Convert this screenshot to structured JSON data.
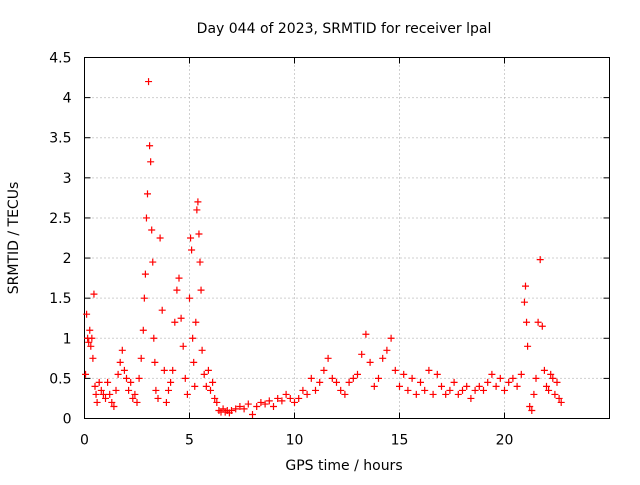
{
  "chart_data": {
    "type": "scatter",
    "title": "Day 044 of 2023, SRMTID for receiver lpal",
    "xlabel": "GPS time / hours",
    "ylabel": "SRMTID / TECUs",
    "xlim": [
      0,
      25
    ],
    "ylim": [
      0,
      4.5
    ],
    "grid": true,
    "marker": "+",
    "marker_color": "#ff0000",
    "x_ticks": [
      0,
      5,
      10,
      15,
      20
    ],
    "x_tick_labels": [
      "0",
      "5",
      "10",
      "15",
      "20"
    ],
    "y_ticks": [
      0,
      0.5,
      1,
      1.5,
      2,
      2.5,
      3,
      3.5,
      4,
      4.5
    ],
    "y_tick_labels": [
      "0",
      "0.5",
      "1",
      "1.5",
      "2",
      "2.5",
      "3",
      "3.5",
      "4",
      "4.5"
    ],
    "series": [
      {
        "name": "SRMTID",
        "points": [
          [
            0.05,
            0.55
          ],
          [
            0.1,
            1.3
          ],
          [
            0.15,
            1.0
          ],
          [
            0.2,
            0.95
          ],
          [
            0.25,
            1.1
          ],
          [
            0.3,
            0.9
          ],
          [
            0.35,
            1.0
          ],
          [
            0.4,
            0.75
          ],
          [
            0.45,
            1.55
          ],
          [
            0.5,
            0.4
          ],
          [
            0.55,
            0.3
          ],
          [
            0.6,
            0.2
          ],
          [
            0.7,
            0.45
          ],
          [
            0.8,
            0.35
          ],
          [
            0.9,
            0.3
          ],
          [
            1.0,
            0.25
          ],
          [
            1.1,
            0.45
          ],
          [
            1.2,
            0.3
          ],
          [
            1.3,
            0.2
          ],
          [
            1.4,
            0.15
          ],
          [
            1.5,
            0.35
          ],
          [
            1.6,
            0.55
          ],
          [
            1.7,
            0.7
          ],
          [
            1.8,
            0.85
          ],
          [
            1.9,
            0.6
          ],
          [
            2.0,
            0.5
          ],
          [
            2.1,
            0.35
          ],
          [
            2.2,
            0.45
          ],
          [
            2.3,
            0.25
          ],
          [
            2.4,
            0.3
          ],
          [
            2.5,
            0.2
          ],
          [
            2.6,
            0.5
          ],
          [
            2.7,
            0.75
          ],
          [
            2.8,
            1.1
          ],
          [
            2.85,
            1.5
          ],
          [
            2.9,
            1.8
          ],
          [
            2.95,
            2.5
          ],
          [
            3.0,
            2.8
          ],
          [
            3.05,
            4.2
          ],
          [
            3.1,
            3.4
          ],
          [
            3.15,
            3.2
          ],
          [
            3.2,
            2.35
          ],
          [
            3.25,
            1.95
          ],
          [
            3.3,
            1.0
          ],
          [
            3.35,
            0.7
          ],
          [
            3.4,
            0.35
          ],
          [
            3.5,
            0.25
          ],
          [
            3.6,
            2.25
          ],
          [
            3.7,
            1.35
          ],
          [
            3.8,
            0.6
          ],
          [
            3.9,
            0.2
          ],
          [
            4.0,
            0.35
          ],
          [
            4.1,
            0.45
          ],
          [
            4.2,
            0.6
          ],
          [
            4.3,
            1.2
          ],
          [
            4.4,
            1.6
          ],
          [
            4.5,
            1.75
          ],
          [
            4.6,
            1.25
          ],
          [
            4.7,
            0.9
          ],
          [
            4.8,
            0.5
          ],
          [
            4.9,
            0.3
          ],
          [
            5.0,
            1.5
          ],
          [
            5.05,
            2.25
          ],
          [
            5.1,
            2.1
          ],
          [
            5.15,
            1.0
          ],
          [
            5.2,
            0.7
          ],
          [
            5.25,
            0.4
          ],
          [
            5.3,
            1.2
          ],
          [
            5.35,
            2.6
          ],
          [
            5.4,
            2.7
          ],
          [
            5.45,
            2.3
          ],
          [
            5.5,
            1.95
          ],
          [
            5.55,
            1.6
          ],
          [
            5.6,
            0.85
          ],
          [
            5.7,
            0.55
          ],
          [
            5.8,
            0.4
          ],
          [
            5.9,
            0.6
          ],
          [
            6.0,
            0.35
          ],
          [
            6.1,
            0.45
          ],
          [
            6.2,
            0.25
          ],
          [
            6.3,
            0.2
          ],
          [
            6.4,
            0.1
          ],
          [
            6.5,
            0.08
          ],
          [
            6.6,
            0.12
          ],
          [
            6.7,
            0.08
          ],
          [
            6.8,
            0.1
          ],
          [
            6.9,
            0.07
          ],
          [
            7.0,
            0.1
          ],
          [
            7.2,
            0.12
          ],
          [
            7.4,
            0.15
          ],
          [
            7.6,
            0.12
          ],
          [
            7.8,
            0.18
          ],
          [
            8.0,
            0.05
          ],
          [
            8.2,
            0.15
          ],
          [
            8.4,
            0.2
          ],
          [
            8.6,
            0.18
          ],
          [
            8.8,
            0.22
          ],
          [
            9.0,
            0.15
          ],
          [
            9.2,
            0.25
          ],
          [
            9.4,
            0.22
          ],
          [
            9.6,
            0.3
          ],
          [
            9.8,
            0.25
          ],
          [
            10.0,
            0.2
          ],
          [
            10.2,
            0.25
          ],
          [
            10.4,
            0.35
          ],
          [
            10.6,
            0.3
          ],
          [
            10.8,
            0.5
          ],
          [
            11.0,
            0.35
          ],
          [
            11.2,
            0.45
          ],
          [
            11.4,
            0.6
          ],
          [
            11.6,
            0.75
          ],
          [
            11.8,
            0.5
          ],
          [
            12.0,
            0.45
          ],
          [
            12.2,
            0.35
          ],
          [
            12.4,
            0.3
          ],
          [
            12.6,
            0.45
          ],
          [
            12.8,
            0.5
          ],
          [
            13.0,
            0.55
          ],
          [
            13.2,
            0.8
          ],
          [
            13.4,
            1.05
          ],
          [
            13.6,
            0.7
          ],
          [
            13.8,
            0.4
          ],
          [
            14.0,
            0.5
          ],
          [
            14.2,
            0.75
          ],
          [
            14.4,
            0.85
          ],
          [
            14.6,
            1.0
          ],
          [
            14.8,
            0.6
          ],
          [
            15.0,
            0.4
          ],
          [
            15.2,
            0.55
          ],
          [
            15.4,
            0.35
          ],
          [
            15.6,
            0.5
          ],
          [
            15.8,
            0.3
          ],
          [
            16.0,
            0.45
          ],
          [
            16.2,
            0.35
          ],
          [
            16.4,
            0.6
          ],
          [
            16.6,
            0.3
          ],
          [
            16.8,
            0.55
          ],
          [
            17.0,
            0.4
          ],
          [
            17.2,
            0.3
          ],
          [
            17.4,
            0.35
          ],
          [
            17.6,
            0.45
          ],
          [
            17.8,
            0.3
          ],
          [
            18.0,
            0.35
          ],
          [
            18.2,
            0.4
          ],
          [
            18.4,
            0.25
          ],
          [
            18.6,
            0.35
          ],
          [
            18.8,
            0.4
          ],
          [
            19.0,
            0.35
          ],
          [
            19.2,
            0.45
          ],
          [
            19.4,
            0.55
          ],
          [
            19.6,
            0.4
          ],
          [
            19.8,
            0.5
          ],
          [
            20.0,
            0.35
          ],
          [
            20.2,
            0.45
          ],
          [
            20.4,
            0.5
          ],
          [
            20.6,
            0.4
          ],
          [
            20.8,
            0.55
          ],
          [
            20.95,
            1.45
          ],
          [
            21.0,
            1.65
          ],
          [
            21.05,
            1.2
          ],
          [
            21.1,
            0.9
          ],
          [
            21.2,
            0.15
          ],
          [
            21.3,
            0.1
          ],
          [
            21.4,
            0.3
          ],
          [
            21.5,
            0.5
          ],
          [
            21.6,
            1.2
          ],
          [
            21.7,
            1.98
          ],
          [
            21.8,
            1.15
          ],
          [
            21.9,
            0.6
          ],
          [
            22.0,
            0.4
          ],
          [
            22.1,
            0.35
          ],
          [
            22.2,
            0.55
          ],
          [
            22.3,
            0.5
          ],
          [
            22.4,
            0.3
          ],
          [
            22.5,
            0.45
          ],
          [
            22.6,
            0.25
          ],
          [
            22.7,
            0.2
          ]
        ]
      }
    ]
  }
}
